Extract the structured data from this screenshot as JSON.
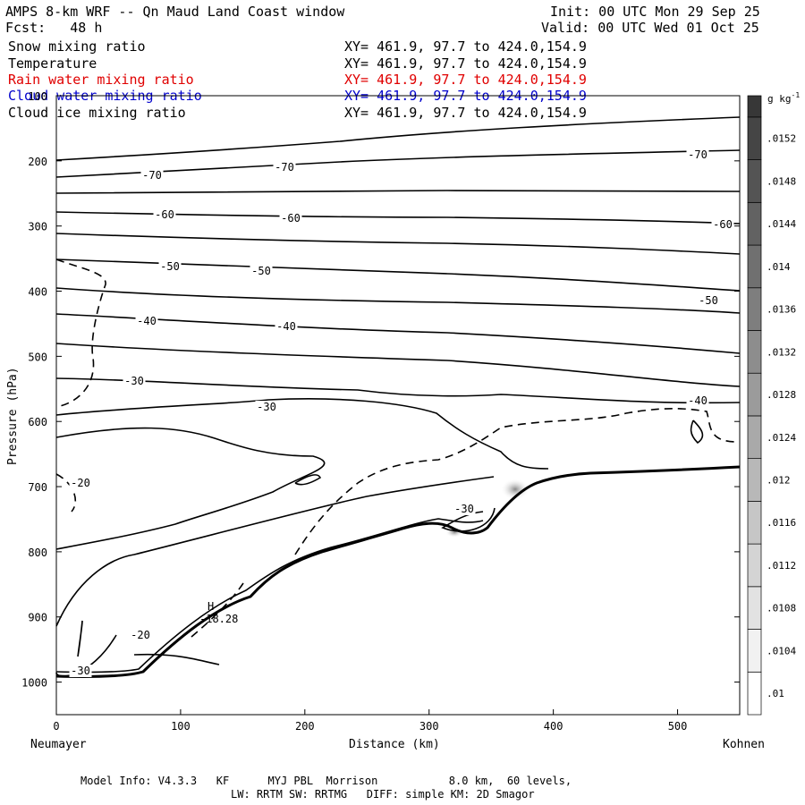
{
  "header": {
    "title": "AMPS 8-km WRF -- Qn Maud Land Coast window",
    "init": "Init: 00 UTC Mon 29 Sep 25",
    "fcst": "Fcst:   48 h",
    "valid": "Valid: 00 UTC Wed 01 Oct 25"
  },
  "fields": [
    {
      "name": "Snow mixing ratio",
      "xy": "XY= 461.9, 97.7 to 424.0,154.9",
      "color": "#000000"
    },
    {
      "name": "Temperature",
      "xy": "XY= 461.9, 97.7 to 424.0,154.9",
      "color": "#000000"
    },
    {
      "name": "Rain water mixing ratio",
      "xy": "XY= 461.9, 97.7 to 424.0,154.9",
      "color": "#e00000"
    },
    {
      "name": "Cloud water mixing ratio",
      "xy": "XY= 461.9, 97.7 to 424.0,154.9",
      "color": "#0000cc"
    },
    {
      "name": "Cloud ice mixing ratio",
      "xy": "XY= 461.9, 97.7 to 424.0,154.9",
      "color": "#000000"
    }
  ],
  "chart_data": {
    "type": "cross-section contour",
    "xlabel": "Distance (km)",
    "ylabel": "Pressure (hPa)",
    "xlim": [
      0,
      550
    ],
    "ylim": [
      1050,
      100
    ],
    "x_ticks": [
      0,
      100,
      200,
      300,
      400,
      500
    ],
    "y_ticks": [
      100,
      200,
      300,
      400,
      500,
      600,
      700,
      800,
      900,
      1000
    ],
    "x_endpoints": {
      "left": "Neumayer",
      "right": "Kohnen"
    },
    "temperature_contour_labels": [
      "-70",
      "-70",
      "-70",
      "-60",
      "-60",
      "-60",
      "-50",
      "-50",
      "-50",
      "-40",
      "-40",
      "-40",
      "-30",
      "-30",
      "-30",
      "-20",
      "-20",
      "-30"
    ],
    "extremum": {
      "symbol": "H",
      "value": "-18.28",
      "x_km": 123,
      "p_hPa": 896
    },
    "colorbar": {
      "unit": "g kg",
      "unit_exp": "-1",
      "ticks": [
        ".01",
        ".0104",
        ".0108",
        ".0112",
        ".0116",
        ".012",
        ".0124",
        ".0128",
        ".0132",
        ".0136",
        ".014",
        ".0144",
        ".0148",
        ".0152"
      ]
    }
  },
  "footer": {
    "line1": "Model Info: V4.3.3   KF      MYJ PBL  Morrison           8.0 km,  60 levels,",
    "line2": "LW: RRTM SW: RRTMG   DIFF: simple KM: 2D Smagor"
  }
}
